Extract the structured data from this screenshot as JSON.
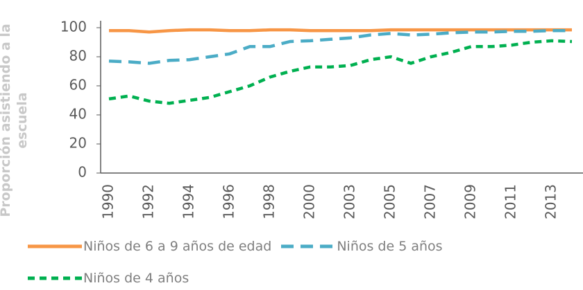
{
  "chart_data": {
    "type": "line",
    "ylabel": "Proporción asistiendo a la escuela",
    "categories": [
      "1990",
      null,
      "1992",
      null,
      "1994",
      null,
      "1996",
      null,
      "1998",
      null,
      "2000",
      null,
      "2003",
      null,
      "2005",
      null,
      "2007",
      null,
      "2009",
      null,
      "2011",
      null,
      "2013",
      null
    ],
    "series": [
      {
        "name": "Niños de 6 a 9 años de edad",
        "color": "#f79646",
        "line_style": "solid",
        "values": [
          98,
          98,
          97,
          98,
          98.5,
          98.5,
          98,
          98,
          98.5,
          98.5,
          98,
          98,
          98,
          98,
          98.5,
          98.5,
          98.5,
          98.5,
          98.5,
          98.5,
          98.5,
          98.5,
          98.5,
          98.5
        ]
      },
      {
        "name": "Niños de 5 años",
        "color": "#4bacc6",
        "line_style": "dashed",
        "values": [
          77,
          76.5,
          75.5,
          77.5,
          78,
          80,
          82,
          87,
          87,
          90.5,
          91,
          92,
          93,
          95,
          96,
          95,
          95.5,
          96.5,
          97,
          97,
          97.5,
          97.5,
          98,
          98
        ]
      },
      {
        "name": "Niños de 4 años",
        "color": "#00b050",
        "line_style": "dotted",
        "values": [
          51,
          53,
          49.5,
          48,
          50,
          52,
          56,
          60,
          66,
          70,
          73,
          73,
          74,
          78,
          80,
          75.5,
          80,
          83,
          87,
          87,
          88,
          90,
          91,
          90.5
        ]
      }
    ],
    "ylim": [
      0,
      100
    ],
    "yticks": [
      0,
      20,
      40,
      60,
      80,
      100
    ],
    "grid": false,
    "legend": "bottom"
  }
}
